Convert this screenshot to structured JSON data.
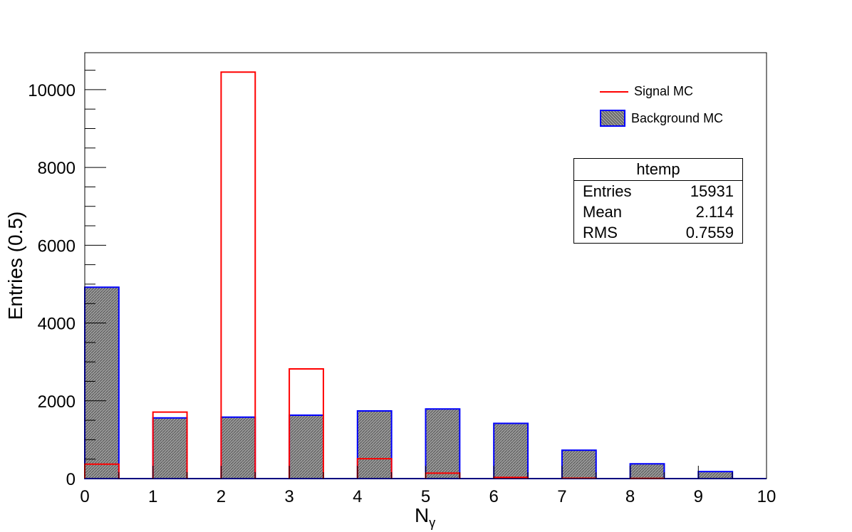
{
  "chart_data": {
    "type": "bar",
    "title": "",
    "xlabel": "N",
    "xlabel_sub": "γ",
    "ylabel": "Entries (0.5)",
    "xlim": [
      0,
      10
    ],
    "ylim": [
      0,
      10950
    ],
    "x_ticks": [
      0,
      1,
      2,
      3,
      4,
      5,
      6,
      7,
      8,
      9,
      10
    ],
    "y_ticks": [
      0,
      2000,
      4000,
      6000,
      8000,
      10000
    ],
    "bin_width": 0.5,
    "bins": [
      0,
      1,
      2,
      3,
      4,
      5,
      6,
      7,
      8,
      9
    ],
    "series": [
      {
        "name": "Signal MC",
        "color": "#ff0000",
        "style": "outline",
        "values": [
          370,
          1710,
          10450,
          2820,
          510,
          140,
          30,
          10,
          5,
          0
        ]
      },
      {
        "name": "Background MC",
        "color": "#0000ff",
        "style": "hatched",
        "values": [
          4920,
          1560,
          1580,
          1630,
          1740,
          1790,
          1420,
          730,
          380,
          180
        ]
      }
    ],
    "legend_position": "top-right",
    "grid": false
  },
  "legend": {
    "signal_label": "Signal MC",
    "background_label": "Background MC"
  },
  "stats_box": {
    "title": "htemp",
    "entries_label": "Entries",
    "entries_value": "15931",
    "mean_label": "Mean",
    "mean_value": "2.114",
    "rms_label": "RMS",
    "rms_value": "0.7559"
  }
}
